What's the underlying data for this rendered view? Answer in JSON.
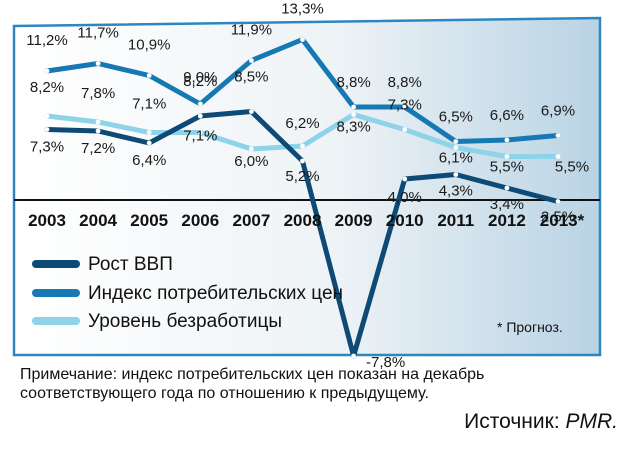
{
  "chart_data": {
    "type": "line",
    "categories": [
      "2003",
      "2004",
      "2005",
      "2006",
      "2007",
      "2008",
      "2009",
      "2010",
      "2011",
      "2012",
      "2013*"
    ],
    "series": [
      {
        "name": "Рост ВВП",
        "color": "#0d4a75",
        "values": [
          7.3,
          7.2,
          6.4,
          8.2,
          8.5,
          5.2,
          -7.8,
          4.0,
          4.3,
          3.4,
          2.5
        ],
        "labels": [
          "7,3%",
          "7,2%",
          "6,4%",
          "8,2%",
          "8,5%",
          "5,2%",
          "-7,8%",
          "4,0%",
          "4,3%",
          "3,4%",
          "2,5%"
        ]
      },
      {
        "name": "Индекс потребительских цен",
        "color": "#1679b3",
        "values": [
          11.2,
          11.7,
          10.9,
          9.0,
          11.9,
          13.3,
          8.8,
          8.8,
          6.5,
          6.6,
          6.9
        ],
        "labels": [
          "11,2%",
          "11,7%",
          "10,9%",
          "9,0%",
          "11,9%",
          "13,3%",
          "8,8%",
          "8,8%",
          "6,5%",
          "6,6%",
          "6,9%"
        ]
      },
      {
        "name": "Уровень безработицы",
        "color": "#8fd3e8",
        "values": [
          8.2,
          7.8,
          7.1,
          7.1,
          6.0,
          6.2,
          8.3,
          7.3,
          6.1,
          5.5,
          5.5
        ],
        "labels": [
          "8,2%",
          "7,8%",
          "7,1%",
          "7,1%",
          "6,0%",
          "6,2%",
          "8,3%",
          "7,3%",
          "6,1%",
          "5,5%",
          "5,5%"
        ]
      }
    ],
    "ylim": [
      -8,
      14
    ]
  },
  "footnote": "* Прогноз.",
  "note": "Примечание: индекс потребительских цен показан на декабрь соответствующего года по отношению к предыдущему.",
  "source_label": "Источник:",
  "source_name": "PMR.",
  "colors": {
    "panel_top": "#2e86c1",
    "panel_inner": "#f3f6f8",
    "axis": "#111111"
  }
}
